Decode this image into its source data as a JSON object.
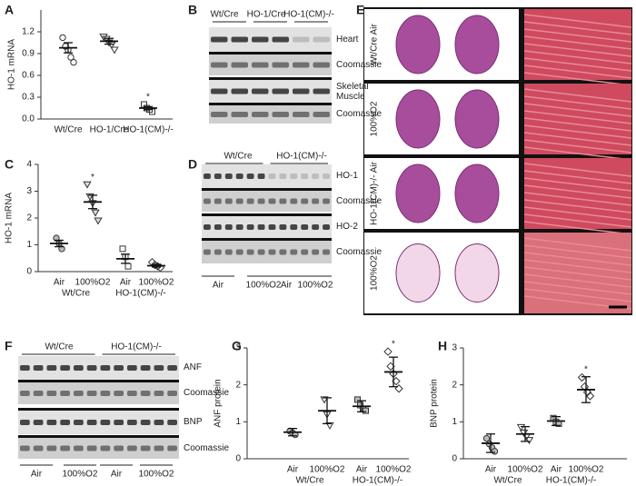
{
  "chart_data": [
    {
      "panel": "A",
      "type": "dot",
      "y_label": "HO-1 mRNA",
      "ylim": [
        0,
        1.5
      ],
      "yticks": [
        {
          "value": 0,
          "label": "0.0"
        },
        0.3,
        0.6,
        0.9,
        1.2
      ],
      "series": [
        {
          "name": "Wt/Cre",
          "marker": "circle",
          "fill": "none",
          "points": [
            1.12,
            1.0,
            0.95,
            0.85,
            0.78
          ],
          "mean": 0.98,
          "error": 0.07
        },
        {
          "name": "HO-1/Cre",
          "marker": "triangle",
          "fill": "none",
          "points": [
            1.13,
            1.1,
            1.05,
            1.02,
            0.95
          ],
          "mean": 1.07,
          "error": 0.04
        },
        {
          "name": "HO-1(CM)-/-",
          "marker": "square",
          "fill": "none",
          "points": [
            0.2,
            0.15,
            0.13,
            0.1
          ],
          "mean": 0.15,
          "error": 0.02,
          "annotation": "*"
        }
      ]
    },
    {
      "panel": "C",
      "type": "dot",
      "y_label": "HO-1 mRNA",
      "ylim": [
        0,
        4
      ],
      "yticks": [
        0,
        1,
        2,
        3,
        4
      ],
      "groups": [
        "Wt/Cre",
        "HO-1(CM)-/-"
      ],
      "series": [
        {
          "name": "Air",
          "marker": "circle",
          "fill": "#bbbbbb",
          "points": [
            1.25,
            1.05,
            0.85
          ],
          "mean": 1.05,
          "error": 0.12
        },
        {
          "name": "100%O2",
          "marker": "triangle",
          "fill": "#dddddd",
          "points": [
            3.25,
            2.8,
            2.55,
            2.2,
            1.9
          ],
          "mean": 2.6,
          "error": 0.25,
          "annotation": "*"
        },
        {
          "name": "Air",
          "marker": "square",
          "fill": "none",
          "points": [
            0.85,
            0.55,
            0.2
          ],
          "mean": 0.48,
          "error": 0.17
        },
        {
          "name": "100%O2",
          "marker": "diamond",
          "fill": "none",
          "points": [
            0.35,
            0.25,
            0.2,
            0.15
          ],
          "mean": 0.22,
          "error": 0.05
        }
      ]
    },
    {
      "panel": "G",
      "type": "dot",
      "y_label": "ANF protein",
      "ylim": [
        0,
        3
      ],
      "yticks": [
        0,
        1,
        2,
        3
      ],
      "groups": [
        "Wt/Cre",
        "HO-1(CM)-/-"
      ],
      "series": [
        {
          "name": "Air",
          "marker": "circle",
          "fill": "#bbbbbb",
          "points": [
            0.75,
            0.7,
            0.65
          ],
          "mean": 0.72,
          "error": 0.1
        },
        {
          "name": "100%O2",
          "marker": "triangle",
          "fill": "none",
          "points": [
            1.6,
            1.2,
            0.9
          ],
          "mean": 1.3,
          "error": 0.35
        },
        {
          "name": "Air",
          "marker": "square",
          "fill": "#bbbbbb",
          "points": [
            1.6,
            1.45,
            1.35,
            1.3
          ],
          "mean": 1.42,
          "error": 0.15
        },
        {
          "name": "100%O2",
          "marker": "diamond",
          "fill": "none",
          "points": [
            2.9,
            2.5,
            2.3,
            2.1,
            1.9
          ],
          "mean": 2.35,
          "error": 0.4,
          "annotation": "*"
        }
      ]
    },
    {
      "panel": "H",
      "type": "dot",
      "y_label": "BNP protein",
      "ylim": [
        0,
        3
      ],
      "yticks": [
        0,
        1,
        2,
        3
      ],
      "groups": [
        "Wt/Cre",
        "HO-1(CM)-/-"
      ],
      "series": [
        {
          "name": "Air",
          "marker": "circle",
          "fill": "#bbbbbb",
          "points": [
            0.55,
            0.4,
            0.3,
            0.2
          ],
          "mean": 0.42,
          "error": 0.25
        },
        {
          "name": "100%O2",
          "marker": "triangle",
          "fill": "none",
          "points": [
            0.85,
            0.7,
            0.6,
            0.5
          ],
          "mean": 0.67,
          "error": 0.2
        },
        {
          "name": "Air",
          "marker": "square",
          "fill": "#bbbbbb",
          "points": [
            1.1,
            1.0,
            0.95
          ],
          "mean": 1.02,
          "error": 0.12
        },
        {
          "name": "100%O2",
          "marker": "diamond",
          "fill": "none",
          "points": [
            2.2,
            1.95,
            1.8,
            1.7
          ],
          "mean": 1.87,
          "error": 0.35,
          "annotation": "*"
        }
      ]
    }
  ],
  "blots": [
    {
      "panel": "B",
      "header": [
        "Wt/Cre",
        "HO-1/Cre",
        "HO-1(CM)-/-"
      ],
      "rows": [
        "Heart",
        "Coomassie",
        "Skeletal Muscle",
        "Coomassie"
      ],
      "footer": []
    },
    {
      "panel": "D",
      "header": [
        "Wt/Cre",
        "HO-1(CM)-/-"
      ],
      "rows": [
        "HO-1",
        "Coomassie",
        "HO-2",
        "Coomassie"
      ],
      "footer": [
        "Air",
        "100%O2",
        "Air",
        "100%O2"
      ]
    },
    {
      "panel": "F",
      "header": [
        "Wt/Cre",
        "HO-1(CM)-/-"
      ],
      "rows": [
        "ANF",
        "Coomassie",
        "BNP",
        "Coomassie"
      ],
      "footer": [
        "Air",
        "100%O2",
        "Air",
        "100%O2"
      ]
    }
  ],
  "histology": {
    "panel": "E",
    "rows": [
      "Wt/Cre Air",
      "100%O2",
      "HO-1(CM)-/- Air",
      "100%O2"
    ]
  }
}
